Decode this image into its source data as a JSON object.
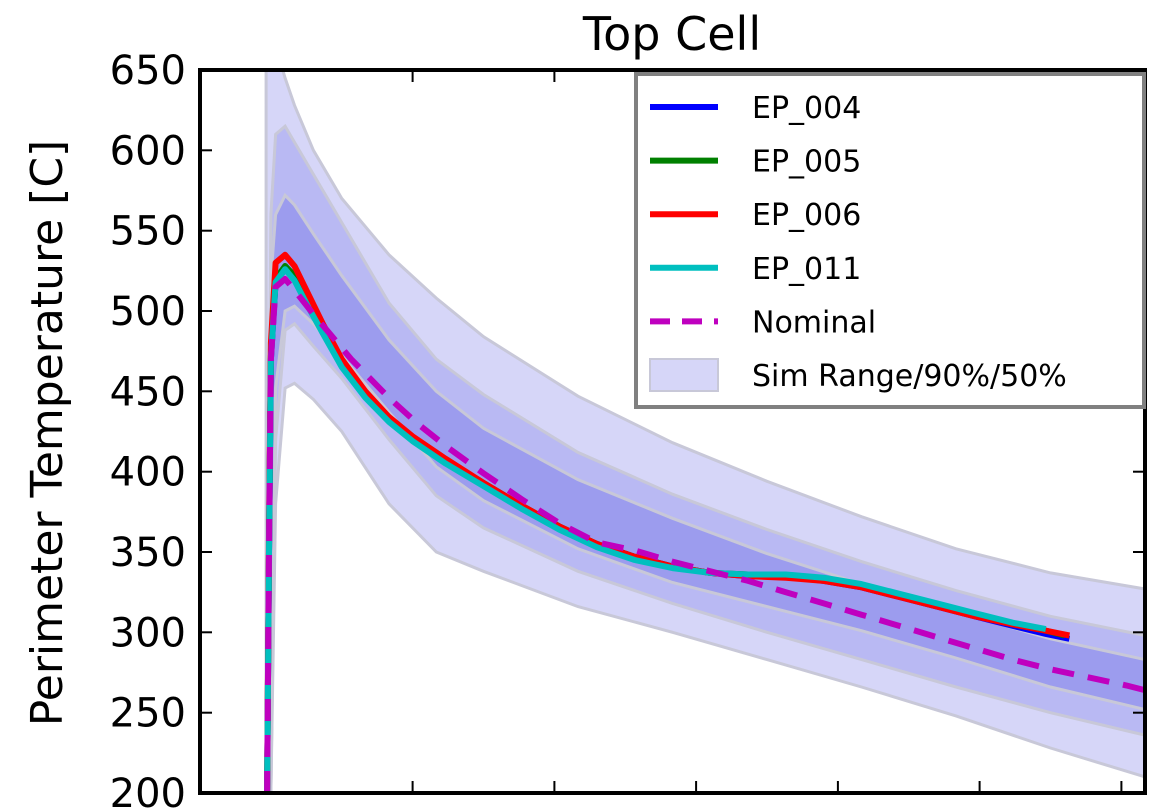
{
  "chart_data": {
    "type": "line",
    "title": "Top Cell",
    "ylabel": "Perimeter Temperature [C]",
    "xlabel": "",
    "ylim": [
      200,
      650
    ],
    "xlim": [
      0,
      100
    ],
    "yticks": [
      200,
      250,
      300,
      350,
      400,
      450,
      500,
      550,
      600,
      650
    ],
    "xticks": [
      22.5,
      37.5,
      52.5,
      67.5,
      82.5,
      97.5
    ],
    "grid": false,
    "legend_position": "top-right",
    "series": [
      {
        "name": "EP_004",
        "color": "#0000ff",
        "style": "solid",
        "x": [
          7.1,
          7.3,
          7.5,
          8.0,
          9.0,
          10.0,
          11.5,
          13.0,
          15.0,
          17.5,
          20.0,
          22.5,
          26.0,
          30.0,
          34.0,
          38.0,
          42.0,
          46.0,
          50.0,
          54.0,
          58.0,
          62.0,
          66.0,
          70.0,
          74.0,
          78.0,
          82.0,
          86.0,
          89.5,
          92.0
        ],
        "values": [
          200,
          350,
          470,
          518,
          526,
          520,
          504,
          488,
          466,
          447,
          432,
          420,
          406,
          392,
          378,
          365,
          355,
          347,
          341,
          337,
          335,
          335,
          332,
          328,
          322,
          316,
          310,
          304,
          299,
          296
        ]
      },
      {
        "name": "EP_005",
        "color": "#008000",
        "style": "solid",
        "x": [
          7.1,
          7.3,
          7.5,
          8.0,
          9.0,
          10.0,
          11.5,
          13.0,
          15.0,
          17.5,
          20.0,
          22.5,
          26.0,
          30.0,
          34.0,
          38.0,
          42.0,
          46.0,
          50.0,
          54.0,
          58.0,
          62.0,
          66.0,
          70.0,
          74.0,
          78.0,
          82.0,
          86.0,
          89.5,
          91.5
        ],
        "values": [
          200,
          350,
          472,
          520,
          528,
          522,
          506,
          490,
          468,
          449,
          433,
          421,
          407,
          393,
          379,
          366,
          355,
          347,
          341,
          337,
          336,
          335,
          333,
          329,
          323,
          317,
          311,
          305,
          301,
          298
        ]
      },
      {
        "name": "EP_006",
        "color": "#ff0000",
        "style": "solid",
        "x": [
          7.1,
          7.3,
          7.5,
          8.0,
          9.0,
          10.0,
          11.5,
          13.0,
          15.0,
          17.5,
          20.0,
          22.5,
          26.0,
          30.0,
          34.0,
          38.0,
          42.0,
          46.0,
          50.0,
          54.0,
          58.0,
          62.0,
          66.0,
          70.0,
          74.0,
          78.0,
          82.0,
          86.0,
          89.5,
          92.0
        ],
        "values": [
          200,
          360,
          480,
          530,
          535,
          528,
          510,
          492,
          470,
          450,
          434,
          422,
          408,
          393,
          379,
          366,
          355,
          347,
          341,
          337,
          335,
          334,
          332,
          328,
          322,
          316,
          310,
          305,
          301,
          298
        ]
      },
      {
        "name": "EP_011",
        "color": "#00bfbf",
        "style": "solid",
        "x": [
          7.1,
          7.3,
          7.5,
          8.0,
          9.0,
          10.0,
          11.5,
          13.0,
          15.0,
          17.5,
          20.0,
          22.5,
          26.0,
          30.0,
          34.0,
          38.0,
          42.0,
          46.0,
          50.0,
          54.0,
          58.0,
          62.0,
          66.0,
          70.0,
          74.0,
          78.0,
          82.0,
          86.0,
          89.5
        ],
        "values": [
          200,
          350,
          470,
          518,
          526,
          519,
          502,
          486,
          465,
          446,
          431,
          419,
          405,
          391,
          377,
          364,
          353,
          345,
          340,
          337,
          336,
          336,
          334,
          330,
          324,
          318,
          312,
          306,
          302
        ]
      },
      {
        "name": "Nominal",
        "color": "#bf00bf",
        "style": "dashed",
        "x": [
          7.1,
          7.3,
          7.5,
          8.0,
          9.0,
          10.0,
          12.0,
          14.0,
          16.0,
          18.0,
          20.0,
          23.0,
          26.0,
          30.0,
          34.0,
          38.0,
          42.0,
          46.0,
          50.0,
          54.0,
          58.0,
          62.0,
          66.0,
          70.0,
          74.0,
          78.0,
          82.0,
          86.0,
          90.0,
          94.0,
          98.0,
          100.0
        ],
        "values": [
          200,
          350,
          470,
          515,
          520,
          513,
          498,
          484,
          470,
          458,
          446,
          430,
          416,
          399,
          383,
          368,
          356,
          351,
          344,
          338,
          332,
          325,
          318,
          311,
          304,
          297,
          290,
          283,
          277,
          272,
          267,
          264
        ]
      }
    ],
    "bands": [
      {
        "name": "Sim Range/90%/50%",
        "level": "range",
        "color": "#d6d6f8",
        "x": [
          7.0,
          7.5,
          8.0,
          9.0,
          10.0,
          12.0,
          15.0,
          20.0,
          25.0,
          30.0,
          40.0,
          50.0,
          60.0,
          70.0,
          80.0,
          90.0,
          100.0
        ],
        "upper": [
          650,
          660,
          665,
          645,
          628,
          600,
          570,
          535,
          508,
          484,
          447,
          418,
          394,
          372,
          352,
          337,
          327
        ],
        "lower": [
          200,
          200,
          380,
          452,
          455,
          445,
          425,
          380,
          350,
          338,
          316,
          300,
          283,
          266,
          248,
          228,
          210
        ]
      },
      {
        "name": "90%",
        "level": "90",
        "color": "#b9b9f3",
        "x": [
          7.0,
          7.5,
          8.0,
          9.0,
          10.0,
          12.0,
          15.0,
          20.0,
          25.0,
          30.0,
          40.0,
          50.0,
          60.0,
          70.0,
          80.0,
          90.0,
          100.0
        ],
        "upper": [
          200,
          560,
          610,
          615,
          605,
          585,
          555,
          505,
          470,
          448,
          412,
          386,
          364,
          344,
          326,
          310,
          298
        ],
        "lower": [
          200,
          200,
          420,
          488,
          492,
          478,
          458,
          420,
          385,
          365,
          338,
          318,
          300,
          283,
          266,
          250,
          236
        ]
      },
      {
        "name": "50%",
        "level": "50",
        "color": "#9c9cee",
        "x": [
          7.0,
          7.5,
          8.0,
          9.0,
          10.0,
          12.0,
          15.0,
          20.0,
          25.0,
          30.0,
          40.0,
          50.0,
          60.0,
          70.0,
          80.0,
          90.0,
          100.0
        ],
        "upper": [
          200,
          520,
          560,
          572,
          566,
          548,
          522,
          482,
          450,
          427,
          395,
          371,
          349,
          330,
          313,
          296,
          283
        ],
        "lower": [
          200,
          200,
          452,
          500,
          503,
          492,
          472,
          437,
          403,
          382,
          352,
          331,
          316,
          301,
          284,
          266,
          252
        ]
      }
    ],
    "legend": [
      {
        "label": "EP_004",
        "color": "#0000ff",
        "style": "solid"
      },
      {
        "label": "EP_005",
        "color": "#008000",
        "style": "solid"
      },
      {
        "label": "EP_006",
        "color": "#ff0000",
        "style": "solid"
      },
      {
        "label": "EP_011",
        "color": "#00bfbf",
        "style": "solid"
      },
      {
        "label": "Nominal",
        "color": "#bf00bf",
        "style": "dashed"
      },
      {
        "label": "Sim Range/90%/50%",
        "color": "#d6d6f8",
        "style": "patch"
      }
    ]
  }
}
